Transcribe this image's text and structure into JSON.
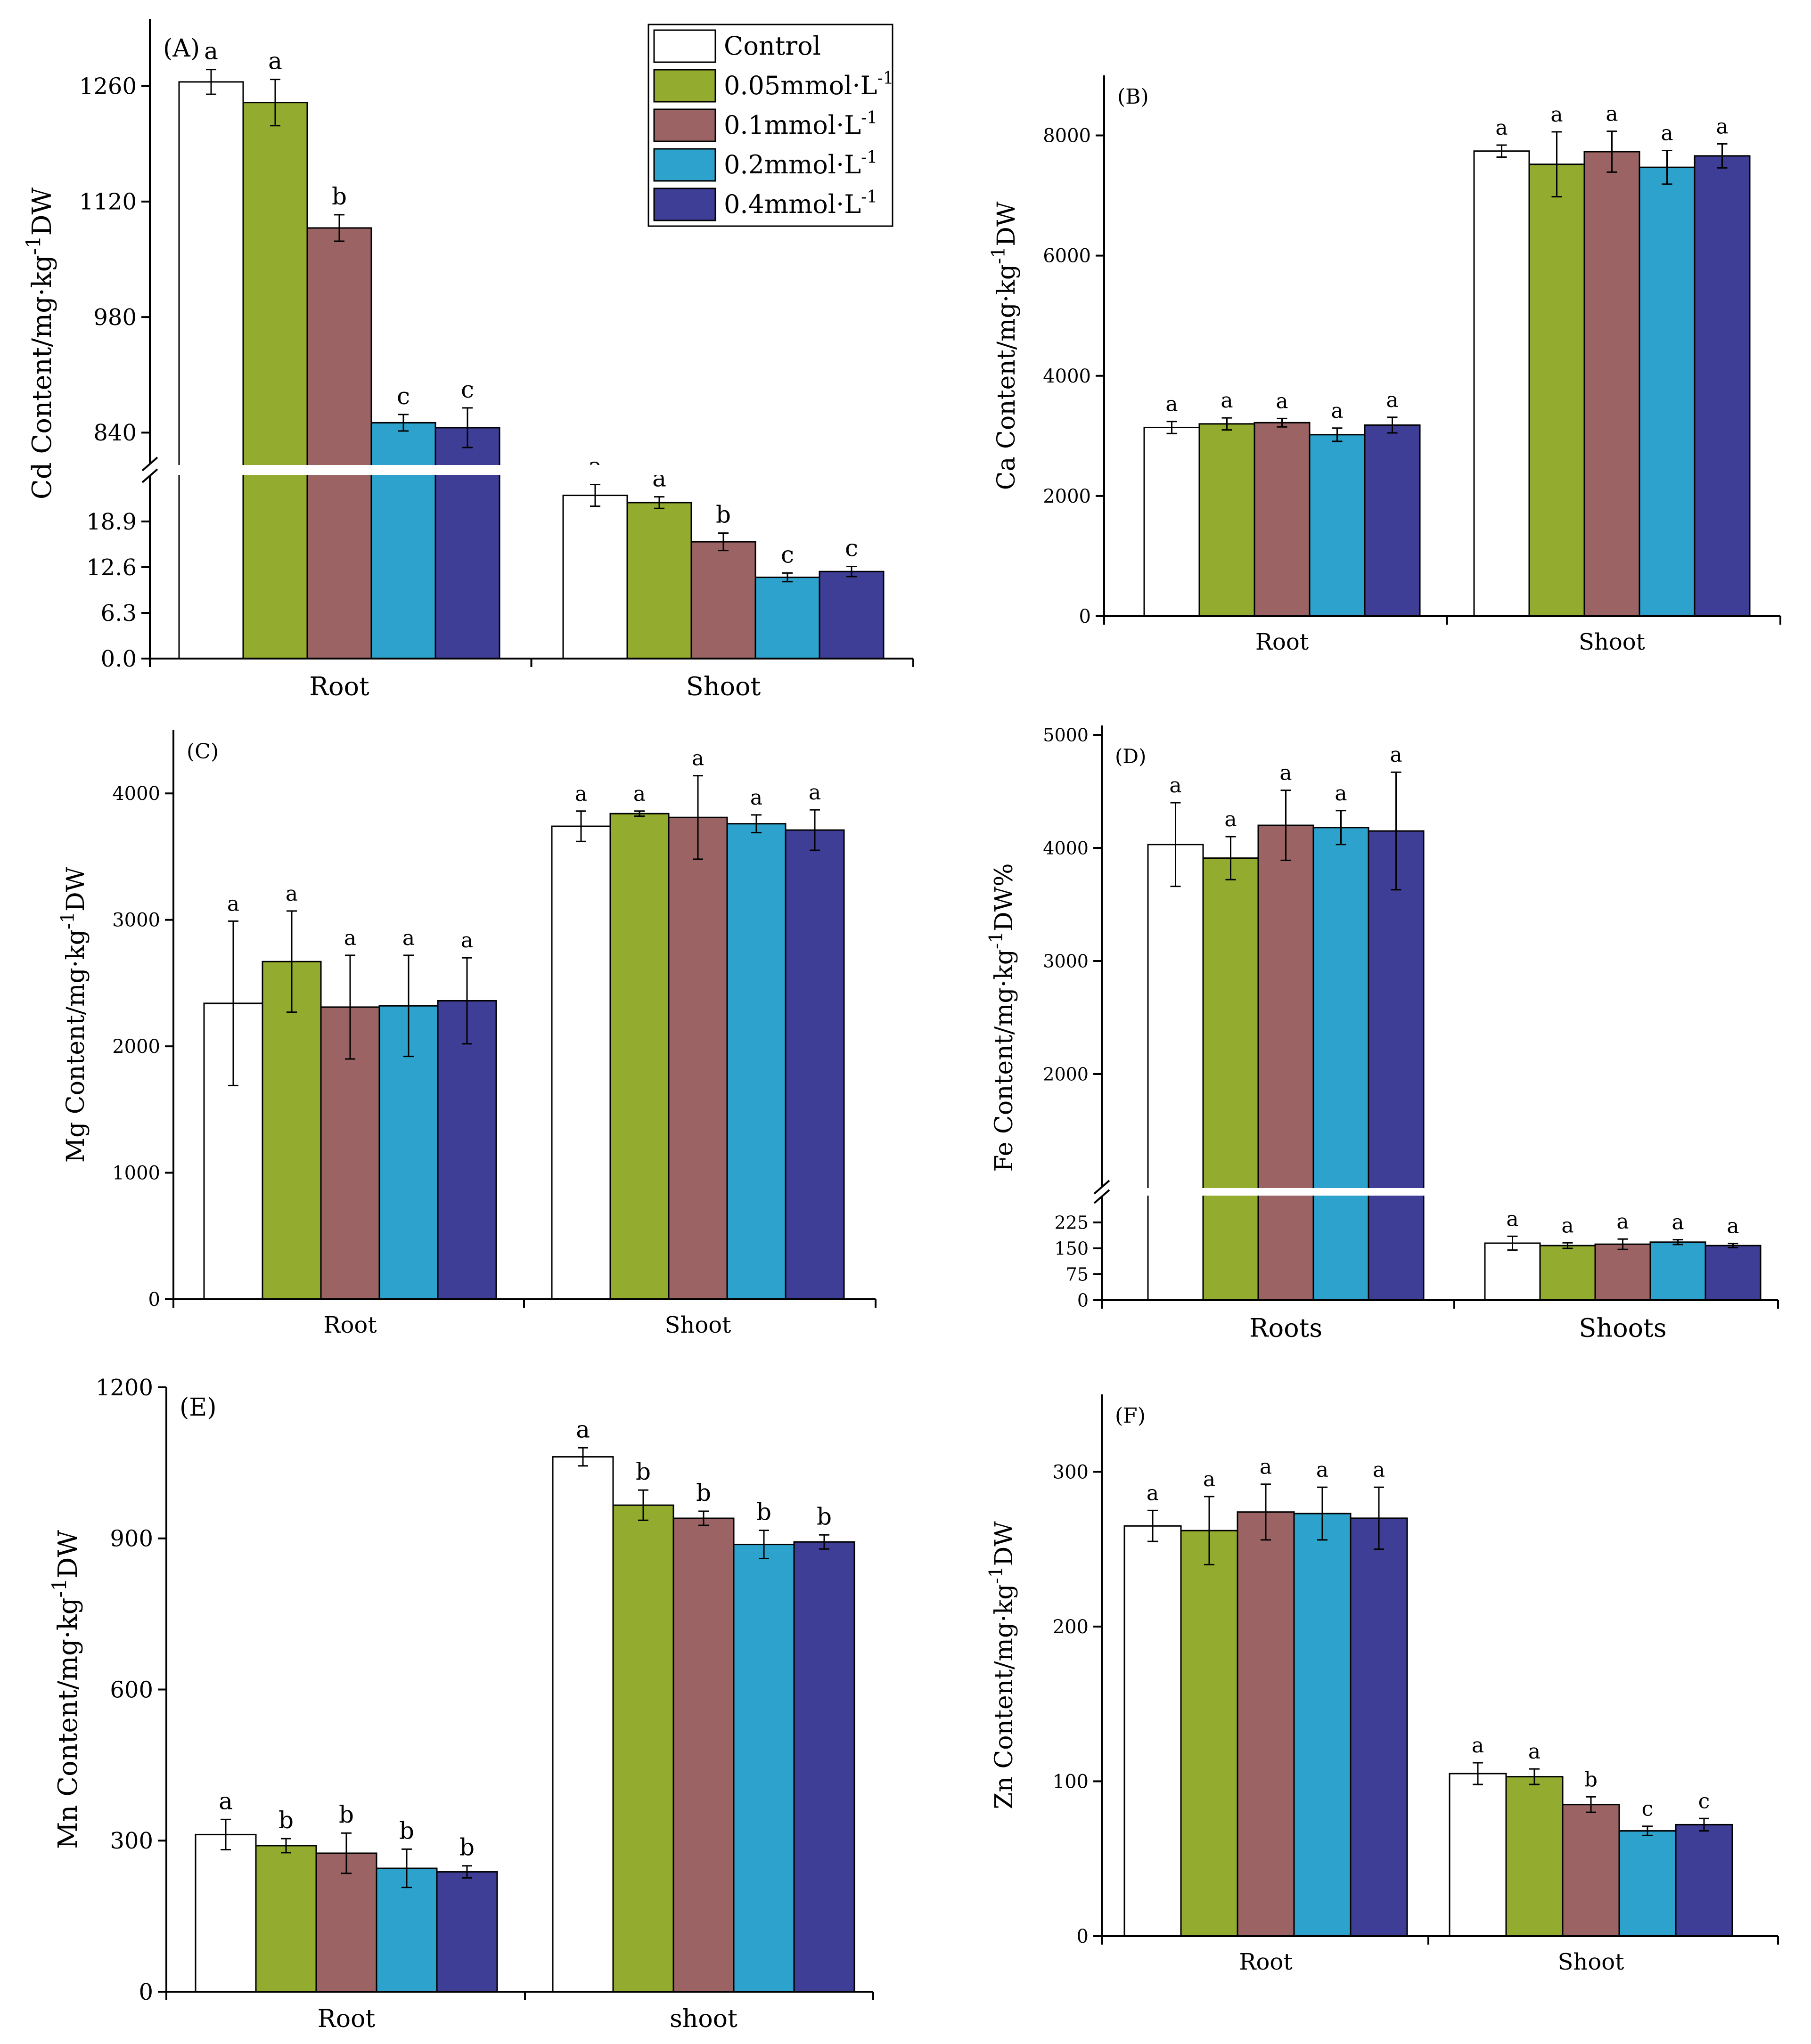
{
  "colors": {
    "Control": "#ffffff",
    "0.05mmol": "#93ac2f",
    "0.1mmol": "#9b6363",
    "0.2mmol": "#2da2cc",
    "0.4mmol": "#3f3e97"
  },
  "legend": {
    "entries": [
      {
        "key": "Control",
        "text": "Control",
        "sup": ""
      },
      {
        "key": "0.05mmol",
        "text": "0.05mmol·L",
        "sup": "-1"
      },
      {
        "key": "0.1mmol",
        "text": "0.1mmol·L",
        "sup": "-1"
      },
      {
        "key": "0.2mmol",
        "text": "0.2mmol·L",
        "sup": "-1"
      },
      {
        "key": "0.4mmol",
        "text": "0.4mmol·L",
        "sup": "-1"
      }
    ]
  },
  "chart_data": [
    {
      "id": "A",
      "panel_label": "(A)",
      "type": "bar",
      "ylabel": {
        "main": "Cd Content/mg·kg",
        "sup": "-1",
        "tail": "DW"
      },
      "categories": [
        "Root",
        "Shoot"
      ],
      "broken_axis": {
        "lower_range": [
          0,
          25.2
        ],
        "upper_range": [
          802,
          1330
        ]
      },
      "yticks_lower": [
        "0.0",
        "6.3",
        "12.6",
        "18.9"
      ],
      "yticks_upper": [
        "840",
        "980",
        "1120",
        "1260"
      ],
      "series": [
        {
          "name": "Control",
          "values": [
            1265,
            22.5
          ],
          "errors": [
            15,
            1.5
          ],
          "letters": [
            "a",
            "a"
          ]
        },
        {
          "name": "0.05mmol·L-1",
          "values": [
            1240,
            21.5
          ],
          "errors": [
            28,
            0.8
          ],
          "letters": [
            "a",
            "a"
          ]
        },
        {
          "name": "0.1mmol·L-1",
          "values": [
            1088,
            16.1
          ],
          "errors": [
            16,
            1.2
          ],
          "letters": [
            "b",
            "b"
          ]
        },
        {
          "name": "0.2mmol·L-1",
          "values": [
            852,
            11.2
          ],
          "errors": [
            10,
            0.6
          ],
          "letters": [
            "c",
            "c"
          ]
        },
        {
          "name": "0.4mmol·L-1",
          "values": [
            846,
            12.0
          ],
          "errors": [
            24,
            0.7
          ],
          "letters": [
            "c",
            "c"
          ]
        }
      ]
    },
    {
      "id": "B",
      "panel_label": "(B)",
      "type": "bar",
      "ylabel": {
        "main": "Ca Content/mg·kg",
        "sup": "-1",
        "tail": "DW"
      },
      "categories": [
        "Root",
        "Shoot"
      ],
      "ylim": [
        0,
        9000
      ],
      "yticks": [
        "0",
        "2000",
        "4000",
        "6000",
        "8000"
      ],
      "series": [
        {
          "name": "Control",
          "values": [
            3140,
            7740
          ],
          "errors": [
            100,
            100
          ],
          "letters": [
            "a",
            "a"
          ]
        },
        {
          "name": "0.05mmol·L-1",
          "values": [
            3200,
            7520
          ],
          "errors": [
            100,
            540
          ],
          "letters": [
            "a",
            "a"
          ]
        },
        {
          "name": "0.1mmol·L-1",
          "values": [
            3220,
            7730
          ],
          "errors": [
            70,
            340
          ],
          "letters": [
            "a",
            "a"
          ]
        },
        {
          "name": "0.2mmol·L-1",
          "values": [
            3020,
            7470
          ],
          "errors": [
            110,
            280
          ],
          "letters": [
            "a",
            "a"
          ]
        },
        {
          "name": "0.4mmol·L-1",
          "values": [
            3180,
            7660
          ],
          "errors": [
            130,
            200
          ],
          "letters": [
            "a",
            "a"
          ]
        }
      ]
    },
    {
      "id": "C",
      "panel_label": "(C)",
      "type": "bar",
      "ylabel": {
        "main": "Mg Content/mg·kg",
        "sup": "-1",
        "tail": "DW"
      },
      "categories": [
        "Root",
        "Shoot"
      ],
      "ylim": [
        0,
        4500
      ],
      "yticks": [
        "0",
        "1000",
        "2000",
        "3000",
        "4000"
      ],
      "series": [
        {
          "name": "Control",
          "values": [
            2340,
            3740
          ],
          "errors": [
            650,
            120
          ],
          "letters": [
            "a",
            "a"
          ]
        },
        {
          "name": "0.05mmol·L-1",
          "values": [
            2670,
            3840
          ],
          "errors": [
            400,
            20
          ],
          "letters": [
            "a",
            "a"
          ]
        },
        {
          "name": "0.1mmol·L-1",
          "values": [
            2310,
            3810
          ],
          "errors": [
            410,
            330
          ],
          "letters": [
            "a",
            "a"
          ]
        },
        {
          "name": "0.2mmol·L-1",
          "values": [
            2320,
            3760
          ],
          "errors": [
            400,
            70
          ],
          "letters": [
            "a",
            "a"
          ]
        },
        {
          "name": "0.4mmol·L-1",
          "values": [
            2360,
            3710
          ],
          "errors": [
            340,
            160
          ],
          "letters": [
            "a",
            "a"
          ]
        }
      ]
    },
    {
      "id": "D",
      "panel_label": "(D)",
      "type": "bar",
      "ylabel": {
        "main": "Fe Content/mg·kg",
        "sup": "-1",
        "tail": "DW%"
      },
      "categories": [
        "Roots",
        "Shoots"
      ],
      "broken_axis": {
        "lower_range": [
          0,
          300
        ],
        "upper_range": [
          1000,
          5000
        ]
      },
      "yticks_lower": [
        "0",
        "75",
        "150",
        "225"
      ],
      "yticks_upper": [
        "2000",
        "3000",
        "4000",
        "5000"
      ],
      "series": [
        {
          "name": "Control",
          "values": [
            4030,
            165
          ],
          "errors": [
            370,
            20
          ],
          "letters": [
            "a",
            "a"
          ]
        },
        {
          "name": "0.05mmol·L-1",
          "values": [
            3910,
            158
          ],
          "errors": [
            190,
            8
          ],
          "letters": [
            "a",
            "a"
          ]
        },
        {
          "name": "0.1mmol·L-1",
          "values": [
            4200,
            162
          ],
          "errors": [
            310,
            15
          ],
          "letters": [
            "a",
            "a"
          ]
        },
        {
          "name": "0.2mmol·L-1",
          "values": [
            4180,
            168
          ],
          "errors": [
            150,
            7
          ],
          "letters": [
            "a",
            "a"
          ]
        },
        {
          "name": "0.4mmol·L-1",
          "values": [
            4150,
            158
          ],
          "errors": [
            520,
            6
          ],
          "letters": [
            "a",
            "a"
          ]
        }
      ]
    },
    {
      "id": "E",
      "panel_label": "(E)",
      "type": "bar",
      "ylabel": {
        "main": "Mn Content/mg·kg",
        "sup": "-1",
        "tail": "DW"
      },
      "categories": [
        "Root",
        "shoot"
      ],
      "ylim": [
        0,
        1200
      ],
      "yticks": [
        "0",
        "300",
        "600",
        "900",
        "1200"
      ],
      "series": [
        {
          "name": "Control",
          "values": [
            312,
            1062
          ],
          "errors": [
            30,
            18
          ],
          "letters": [
            "a",
            "a"
          ]
        },
        {
          "name": "0.05mmol·L-1",
          "values": [
            290,
            966
          ],
          "errors": [
            14,
            30
          ],
          "letters": [
            "b",
            "b"
          ]
        },
        {
          "name": "0.1mmol·L-1",
          "values": [
            275,
            940
          ],
          "errors": [
            40,
            14
          ],
          "letters": [
            "b",
            "b"
          ]
        },
        {
          "name": "0.2mmol·L-1",
          "values": [
            245,
            888
          ],
          "errors": [
            38,
            28
          ],
          "letters": [
            "b",
            "b"
          ]
        },
        {
          "name": "0.4mmol·L-1",
          "values": [
            238,
            893
          ],
          "errors": [
            12,
            14
          ],
          "letters": [
            "b",
            "b"
          ]
        }
      ]
    },
    {
      "id": "F",
      "panel_label": "(F)",
      "type": "bar",
      "ylabel": {
        "main": "Zn Content/mg·kg",
        "sup": "-1",
        "tail": "DW"
      },
      "categories": [
        "Root",
        "Shoot"
      ],
      "ylim": [
        0,
        350
      ],
      "yticks": [
        "0",
        "100",
        "200",
        "300"
      ],
      "series": [
        {
          "name": "Control",
          "values": [
            265,
            105
          ],
          "errors": [
            10,
            7
          ],
          "letters": [
            "a",
            "a"
          ]
        },
        {
          "name": "0.05mmol·L-1",
          "values": [
            262,
            103
          ],
          "errors": [
            22,
            5
          ],
          "letters": [
            "a",
            "a"
          ]
        },
        {
          "name": "0.1mmol·L-1",
          "values": [
            274,
            85
          ],
          "errors": [
            18,
            5
          ],
          "letters": [
            "a",
            "b"
          ]
        },
        {
          "name": "0.2mmol·L-1",
          "values": [
            273,
            68
          ],
          "errors": [
            17,
            3
          ],
          "letters": [
            "a",
            "c"
          ]
        },
        {
          "name": "0.4mmol·L-1",
          "values": [
            270,
            72
          ],
          "errors": [
            20,
            4
          ],
          "letters": [
            "a",
            "c"
          ]
        }
      ]
    }
  ]
}
